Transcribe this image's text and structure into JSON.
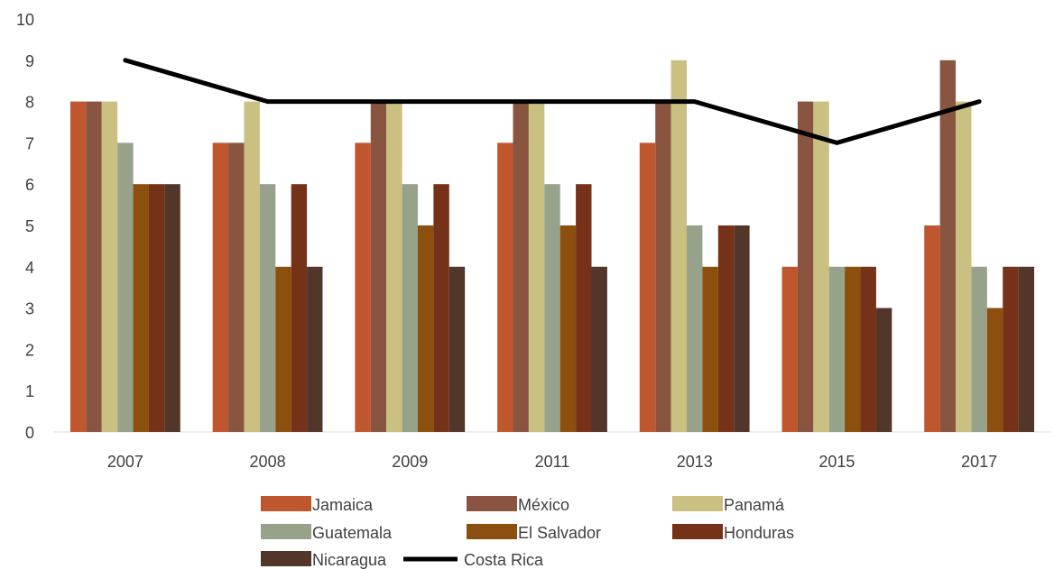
{
  "chart_data": {
    "type": "bar",
    "categories": [
      "2007",
      "2008",
      "2009",
      "2011",
      "2013",
      "2015",
      "2017"
    ],
    "series": [
      {
        "name": "Jamaica",
        "type": "bar",
        "color": "#C0562E",
        "values": [
          8,
          7,
          7,
          7,
          7,
          4,
          5
        ]
      },
      {
        "name": "México",
        "type": "bar",
        "color": "#8A5540",
        "values": [
          8,
          7,
          8,
          8,
          8,
          8,
          9
        ]
      },
      {
        "name": "Panamá",
        "type": "bar",
        "color": "#C9C081",
        "values": [
          8,
          8,
          8,
          8,
          9,
          8,
          8
        ]
      },
      {
        "name": "Guatemala",
        "type": "bar",
        "color": "#96A28A",
        "values": [
          7,
          6,
          6,
          6,
          5,
          4,
          4
        ]
      },
      {
        "name": "El Salvador",
        "type": "bar",
        "color": "#8C4F0D",
        "values": [
          6,
          4,
          5,
          5,
          4,
          4,
          3
        ]
      },
      {
        "name": "Honduras",
        "type": "bar",
        "color": "#763219",
        "values": [
          6,
          6,
          6,
          6,
          5,
          4,
          4
        ]
      },
      {
        "name": "Nicaragua",
        "type": "bar",
        "color": "#52362A",
        "values": [
          6,
          4,
          4,
          4,
          5,
          3,
          4
        ]
      },
      {
        "name": "Costa Rica",
        "type": "line",
        "color": "#000000",
        "values": [
          9,
          8,
          8,
          8,
          8,
          7,
          8
        ]
      }
    ],
    "ylim": [
      0,
      10
    ],
    "yticks": [
      "0",
      "1",
      "2",
      "3",
      "4",
      "5",
      "6",
      "7",
      "8",
      "9",
      "10"
    ],
    "grid": false,
    "legend_position": "bottom"
  }
}
